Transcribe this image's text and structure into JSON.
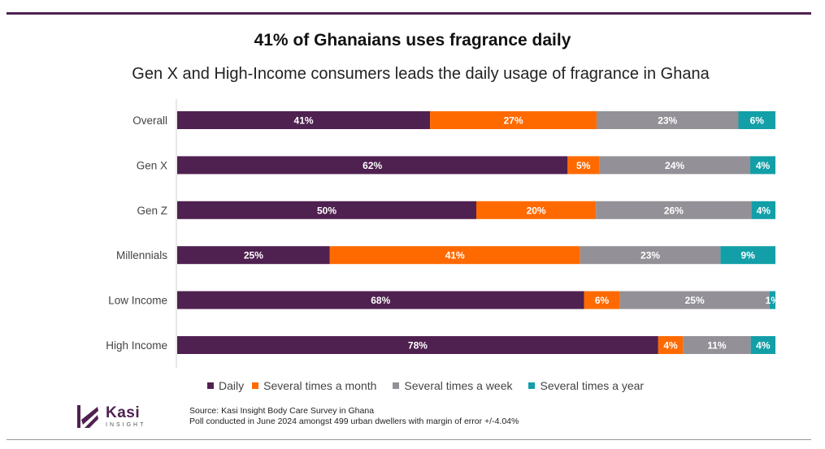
{
  "title": "41% of Ghanaians uses fragrance daily",
  "subtitle": "Gen X and High-Income consumers leads the daily usage of fragrance in Ghana",
  "source_line1": "Source: Kasi Insight Body Care Survey in Ghana",
  "source_line2": "Poll conducted in June 2024 amongst 499 urban dwellers with margin of error +/-4.04%",
  "logo": {
    "name": "Kasi",
    "tagline": "INSIGHT"
  },
  "chart_data": {
    "type": "bar",
    "orientation": "horizontal",
    "stacked": true,
    "normalized_to_percent": true,
    "categories": [
      "Overall",
      "Gen X",
      "Gen Z",
      "Millennials",
      "Low Income",
      "High Income"
    ],
    "series": [
      {
        "name": "Daily",
        "color": "#4f2150",
        "values": [
          41,
          62,
          50,
          25,
          68,
          78
        ],
        "labels": [
          "41%",
          "62%",
          "50%",
          "25%",
          "68%",
          "78%"
        ]
      },
      {
        "name": "Several times a month",
        "color": "#ff6a00",
        "values": [
          27,
          5,
          20,
          41,
          6,
          4
        ],
        "labels": [
          "27%",
          "5%",
          "20%",
          "41%",
          "6%",
          "4%"
        ]
      },
      {
        "name": "Several times a week",
        "color": "#939197",
        "values": [
          23,
          24,
          26,
          23,
          25,
          11
        ],
        "labels": [
          "23%",
          "24%",
          "26%",
          "23%",
          "25%",
          "11%"
        ]
      },
      {
        "name": "Several times a year",
        "color": "#129fa8",
        "values": [
          6,
          4,
          4,
          9,
          1,
          4
        ],
        "labels": [
          "6%",
          "4%",
          "4%",
          "9%",
          "1%",
          "4%"
        ]
      }
    ],
    "xlim": [
      0,
      100
    ],
    "legend_position": "bottom",
    "grid": false
  }
}
